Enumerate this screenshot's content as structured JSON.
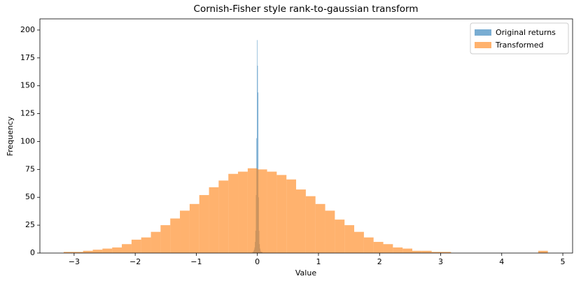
{
  "chart_data": {
    "type": "histogram",
    "title": "Cornish-Fisher style rank-to-gaussian transform",
    "x_label": "Value",
    "y_label": "Frequency",
    "xlim": [
      -3.56,
      5.16
    ],
    "xticks": [
      {
        "value": -3,
        "label": "−3"
      },
      {
        "value": -2,
        "label": "−2"
      },
      {
        "value": -1,
        "label": "−1"
      },
      0,
      1,
      2,
      3,
      4,
      5
    ],
    "ylim": [
      0,
      210
    ],
    "yticks": [
      0,
      25,
      50,
      75,
      100,
      125,
      150,
      175,
      200
    ],
    "legend": "upper right",
    "alpha": 0.6,
    "series": [
      {
        "name": "Original returns",
        "color": "#1f77b4",
        "bins": [
          -0.08,
          -0.072,
          -0.064,
          -0.056,
          -0.048,
          -0.04,
          -0.032,
          -0.024,
          -0.016,
          -0.008,
          0,
          0.008,
          0.016,
          0.024,
          0.032,
          0.04,
          0.048,
          0.056,
          0.064,
          0.072,
          0.08
        ],
        "values": [
          1,
          1,
          2,
          3,
          5,
          10,
          20,
          52,
          103,
          191,
          168,
          144,
          50,
          20,
          8,
          4,
          2,
          1,
          1,
          1
        ]
      },
      {
        "name": "Transformed",
        "color": "#ff7f0e",
        "bins": [
          -3.17,
          -3.011,
          -2.853,
          -2.694,
          -2.536,
          -2.377,
          -2.219,
          -2.06,
          -1.902,
          -1.743,
          -1.585,
          -1.426,
          -1.268,
          -1.109,
          -0.951,
          -0.792,
          -0.634,
          -0.475,
          -0.317,
          -0.158,
          0,
          0.159,
          0.317,
          0.476,
          0.634,
          0.793,
          0.951,
          1.11,
          1.268,
          1.427,
          1.585,
          1.744,
          1.902,
          2.061,
          2.219,
          2.378,
          2.536,
          2.695,
          2.853,
          3.012,
          3.17,
          3.329,
          3.487,
          3.646,
          3.804,
          3.963,
          4.121,
          4.28,
          4.438,
          4.597,
          4.755
        ],
        "values": [
          1,
          1,
          2,
          3,
          4,
          5,
          8,
          12,
          14,
          19,
          25,
          31,
          38,
          44,
          52,
          59,
          65,
          71,
          73,
          76,
          75,
          73,
          70,
          66,
          57,
          51,
          44,
          38,
          30,
          25,
          19,
          14,
          10,
          8,
          5,
          4,
          2,
          2,
          1,
          1,
          0,
          0,
          0,
          0,
          0,
          0,
          0,
          0,
          0,
          2
        ]
      }
    ]
  }
}
